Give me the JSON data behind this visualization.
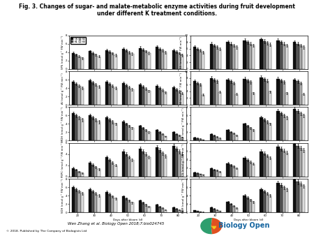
{
  "title": "Fig. 3. Changes of sugar- and malate-metabolic enzyme activities during fruit development\nunder different K treatment conditions.",
  "subtitle": "Wen Zhang et al. Biology Open 2018;7:bio024745",
  "footer": "© 2018. Published by The Company of Biologists Ltd",
  "n_rows": 5,
  "n_cols": 2,
  "bar_colors": [
    "#111111",
    "#555555",
    "#aaaaaa",
    "#dddddd"
  ],
  "legend_labels": [
    "CK",
    "K1",
    "K2",
    "K3"
  ],
  "x_labels": [
    "20",
    "30",
    "40",
    "50",
    "60",
    "70",
    "80"
  ],
  "panels": [
    {
      "ylabel": "SPS (nmol g⁻¹ FW min⁻¹)",
      "ylim": [
        0,
        8
      ],
      "yticks": [
        0,
        2,
        4,
        6,
        8
      ],
      "data": [
        [
          3.8,
          4.2,
          4.5,
          4.8,
          5.0,
          5.2,
          4.5
        ],
        [
          3.4,
          3.8,
          4.1,
          4.4,
          4.6,
          4.8,
          4.1
        ],
        [
          3.0,
          3.4,
          3.7,
          4.0,
          4.2,
          4.4,
          3.7
        ],
        [
          2.6,
          3.0,
          3.3,
          3.6,
          3.8,
          4.0,
          3.3
        ]
      ]
    },
    {
      "ylabel": "SS (nmol g⁻¹ FW min⁻¹)",
      "ylim": [
        0,
        10
      ],
      "yticks": [
        0,
        2,
        4,
        6,
        8,
        10
      ],
      "data": [
        [
          6.5,
          7.5,
          8.0,
          8.5,
          8.8,
          8.5,
          8.0
        ],
        [
          6.0,
          7.0,
          7.5,
          8.0,
          8.3,
          8.0,
          7.5
        ],
        [
          5.5,
          6.5,
          7.0,
          7.5,
          7.8,
          7.5,
          7.0
        ],
        [
          5.0,
          6.0,
          6.5,
          7.0,
          7.3,
          7.0,
          6.5
        ]
      ]
    },
    {
      "ylabel": "AI (nmol g⁻¹ FW min⁻¹)",
      "ylim": [
        0,
        8
      ],
      "yticks": [
        0,
        2,
        4,
        6,
        8
      ],
      "data": [
        [
          5.5,
          5.8,
          5.5,
          5.2,
          4.8,
          4.5,
          4.2
        ],
        [
          5.0,
          5.3,
          5.0,
          4.7,
          4.3,
          4.0,
          3.7
        ],
        [
          4.5,
          4.8,
          4.5,
          4.2,
          3.8,
          3.5,
          3.2
        ],
        [
          4.0,
          4.3,
          4.0,
          3.7,
          3.3,
          3.0,
          2.7
        ]
      ]
    },
    {
      "ylabel": "NI (nmol g⁻¹ FW min⁻¹)",
      "ylim": [
        0,
        10
      ],
      "yticks": [
        0,
        2,
        4,
        6,
        8,
        10
      ],
      "data": [
        [
          7.0,
          8.0,
          7.5,
          7.8,
          8.2,
          7.8,
          7.5
        ],
        [
          6.5,
          7.5,
          7.0,
          7.3,
          7.7,
          7.3,
          7.0
        ],
        [
          6.0,
          7.0,
          6.5,
          6.8,
          7.2,
          6.8,
          6.5
        ],
        [
          3.0,
          3.8,
          3.2,
          3.5,
          3.9,
          3.5,
          3.2
        ]
      ]
    },
    {
      "ylabel": "MDH (nmol g⁻¹ FW min⁻¹)",
      "ylim": [
        0,
        8
      ],
      "yticks": [
        0,
        2,
        4,
        6,
        8
      ],
      "data": [
        [
          6.5,
          6.0,
          5.5,
          4.5,
          3.5,
          2.5,
          2.0
        ],
        [
          6.0,
          5.5,
          5.0,
          4.0,
          3.0,
          2.0,
          1.6
        ],
        [
          5.5,
          5.0,
          4.5,
          3.5,
          2.5,
          1.5,
          1.2
        ],
        [
          5.0,
          4.5,
          4.0,
          3.0,
          2.0,
          1.0,
          0.8
        ]
      ]
    },
    {
      "ylabel": "ME (nmol g⁻¹ FW min⁻¹)",
      "ylim": [
        0,
        8
      ],
      "yticks": [
        0,
        2,
        4,
        6,
        8
      ],
      "data": [
        [
          0.8,
          1.5,
          2.5,
          4.0,
          5.5,
          7.0,
          7.5
        ],
        [
          0.6,
          1.2,
          2.1,
          3.5,
          5.0,
          6.5,
          7.0
        ],
        [
          0.4,
          0.9,
          1.7,
          3.0,
          4.5,
          6.0,
          6.5
        ],
        [
          0.2,
          0.6,
          1.3,
          2.5,
          4.0,
          5.5,
          6.0
        ]
      ]
    },
    {
      "ylabel": "PEPC (nmol g⁻¹ FW min⁻¹)",
      "ylim": [
        0,
        6
      ],
      "yticks": [
        0,
        2,
        4,
        6
      ],
      "data": [
        [
          1.5,
          2.5,
          3.5,
          4.5,
          5.0,
          5.2,
          5.5
        ],
        [
          1.2,
          2.1,
          3.0,
          4.0,
          4.5,
          4.7,
          5.0
        ],
        [
          0.9,
          1.7,
          2.5,
          3.5,
          4.0,
          4.2,
          4.5
        ],
        [
          0.6,
          1.3,
          2.0,
          3.0,
          3.5,
          3.7,
          4.0
        ]
      ]
    },
    {
      "ylabel": "CS (nmol g⁻¹ FW min⁻¹)",
      "ylim": [
        0,
        8
      ],
      "yticks": [
        0,
        2,
        4,
        6,
        8
      ],
      "data": [
        [
          1.0,
          2.0,
          3.2,
          4.5,
          6.0,
          7.2,
          7.8
        ],
        [
          0.8,
          1.7,
          2.8,
          4.0,
          5.5,
          6.7,
          7.3
        ],
        [
          0.6,
          1.4,
          2.4,
          3.5,
          5.0,
          6.2,
          6.8
        ],
        [
          0.4,
          1.1,
          2.0,
          3.0,
          4.5,
          5.7,
          6.3
        ]
      ]
    },
    {
      "ylabel": "SDH (nmol g⁻¹ FW min⁻¹)",
      "ylim": [
        0,
        8
      ],
      "yticks": [
        0,
        2,
        4,
        6,
        8
      ],
      "data": [
        [
          6.0,
          5.5,
          4.8,
          3.8,
          2.8,
          1.8,
          1.2
        ],
        [
          5.5,
          5.0,
          4.3,
          3.3,
          2.3,
          1.4,
          0.9
        ],
        [
          5.0,
          4.5,
          3.8,
          2.8,
          1.8,
          1.0,
          0.6
        ],
        [
          4.5,
          4.0,
          3.3,
          2.3,
          1.3,
          0.6,
          0.3
        ]
      ]
    },
    {
      "ylabel": "FUM (nmol g⁻¹ FW min⁻¹)",
      "ylim": [
        0,
        8
      ],
      "yticks": [
        0,
        2,
        4,
        6,
        8
      ],
      "data": [
        [
          0.5,
          1.2,
          2.5,
          4.0,
          5.5,
          7.0,
          7.8
        ],
        [
          0.3,
          0.9,
          2.0,
          3.5,
          5.0,
          6.5,
          7.3
        ],
        [
          0.15,
          0.6,
          1.5,
          3.0,
          4.5,
          6.0,
          6.8
        ],
        [
          0.05,
          0.3,
          1.0,
          2.5,
          4.0,
          5.5,
          6.3
        ]
      ]
    }
  ],
  "x_label_bottom": "Days after bloom (d)",
  "background_color": "#ffffff"
}
